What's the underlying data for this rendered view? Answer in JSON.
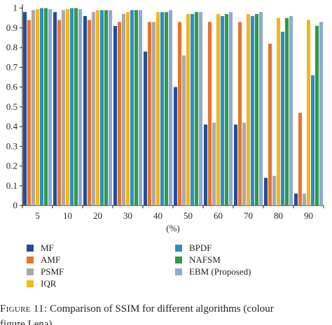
{
  "chart_data": {
    "type": "bar",
    "xlabel": "(%)",
    "ylabel": "",
    "ylim": [
      0,
      1.02
    ],
    "yticks": [
      0,
      0.1,
      0.2,
      0.3,
      0.4,
      0.5,
      0.6,
      0.7,
      0.8,
      0.9,
      1
    ],
    "ytick_labels": [
      "0",
      "0.1",
      "0.2",
      "0.3",
      "0.4",
      "0.5",
      "0.6",
      "0.7",
      "0.8",
      "0.9",
      "1"
    ],
    "categories": [
      "5",
      "10",
      "20",
      "30",
      "40",
      "50",
      "60",
      "70",
      "80",
      "90"
    ],
    "grid": false,
    "legend_position": "below",
    "series": [
      {
        "name": "MF",
        "color": "#1f4e9c",
        "values": [
          0.98,
          0.98,
          0.96,
          0.91,
          0.78,
          0.6,
          0.41,
          0.41,
          0.14,
          0.06
        ]
      },
      {
        "name": "AMF",
        "color": "#e8742a",
        "values": [
          0.94,
          0.94,
          0.94,
          0.93,
          0.93,
          0.93,
          0.93,
          0.93,
          0.82,
          0.47
        ]
      },
      {
        "name": "PSMF",
        "color": "#a8a9ad",
        "values": [
          0.99,
          0.99,
          0.98,
          0.97,
          0.93,
          0.76,
          0.42,
          0.42,
          0.15,
          0.06
        ]
      },
      {
        "name": "IQR",
        "color": "#f7b518",
        "values": [
          0.995,
          0.995,
          0.99,
          0.98,
          0.98,
          0.97,
          0.97,
          0.97,
          0.95,
          0.94
        ]
      },
      {
        "name": "BPDF",
        "color": "#2a8fc8",
        "values": [
          1.0,
          1.0,
          0.99,
          0.99,
          0.98,
          0.97,
          0.96,
          0.96,
          0.88,
          0.66
        ]
      },
      {
        "name": "NAFSM",
        "color": "#2e9b45",
        "values": [
          1.0,
          1.0,
          0.99,
          0.99,
          0.98,
          0.98,
          0.97,
          0.97,
          0.95,
          0.91
        ]
      },
      {
        "name": "EBM (Proposed)",
        "color": "#8ea9d6",
        "values": [
          0.995,
          0.995,
          0.99,
          0.99,
          0.99,
          0.98,
          0.98,
          0.98,
          0.96,
          0.93
        ]
      }
    ]
  },
  "caption": {
    "label": "Figure 11:",
    "text": " Comparison of SSIM for different algorithms (colour",
    "continuation": "figure Lena)."
  }
}
